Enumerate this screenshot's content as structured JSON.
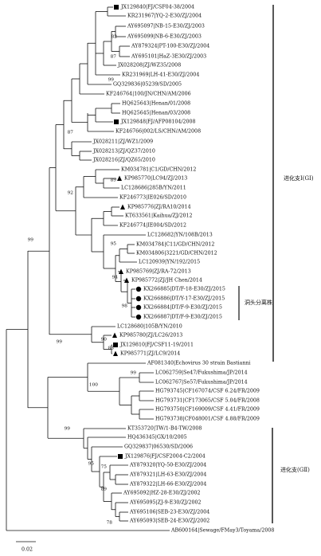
{
  "tree": {
    "leaves": [
      {
        "label": "JX129840|FJ/CSF04-38/2004",
        "marker": "square"
      },
      {
        "label": "KR231967|YQ-2-E30/ZJ/2004"
      },
      {
        "label": "AY695097|NB-15-E30/ZJ/2003"
      },
      {
        "label": "AY695099|NB-6-E30/ZJ/2003"
      },
      {
        "label": "AY879324|PT-100-E30/ZJ/2004"
      },
      {
        "label": "AY695101|HaZ-3E30/ZJ/2003"
      },
      {
        "label": "JX028208|ZJ/WZ35/2008"
      },
      {
        "label": "KR231969|LH-41-E30/ZJ/2004"
      },
      {
        "label": "GQ329836|05239/SD/2005"
      },
      {
        "label": "KF246764|100/JN/CHN/AM/2006"
      },
      {
        "label": "HQ625643|Henan/01/2008"
      },
      {
        "label": "HQ625645|Henan/03/2008"
      },
      {
        "label": "JX129848|FJ/AFP08104/2008",
        "marker": "square"
      },
      {
        "label": "KF246766|002/LS/CHN/AM/2008"
      },
      {
        "label": "JX028211|ZJ/WZ1/2009"
      },
      {
        "label": "JX028213|ZJ/QZ37/2010"
      },
      {
        "label": "JX028216|ZJ/QZ65/2010"
      },
      {
        "label": "KM034781|C1/GD/CHN/2012"
      },
      {
        "label": "KP985770|LC94/ZJ/2013",
        "marker": "triangle"
      },
      {
        "label": "LC128686|285B/YN/2011"
      },
      {
        "label": "KF246773|IE026/SD/2010"
      },
      {
        "label": "KP985776|ZJ/RA10/2014",
        "marker": "triangle"
      },
      {
        "label": "KT633561|Kaihua/ZJ/2012"
      },
      {
        "label": "KF246774|IE004/SD/2012"
      },
      {
        "label": "LC128682|YN/108B/2013"
      },
      {
        "label": "KM034784|C11/GD/CHN/2012"
      },
      {
        "label": "KM034806|3221/GD/CHN/2012"
      },
      {
        "label": "LC120939|YN/192/2015"
      },
      {
        "label": "KP985769|ZJ/RA-72/2013",
        "marker": "triangle"
      },
      {
        "label": "KP985772|ZJ/JH Chen/2014",
        "marker": "triangle"
      },
      {
        "label": "KX266885|DT/F-18-E30/ZJ/2015",
        "marker": "circle"
      },
      {
        "label": "KX266886|DT/Y-17-E30/ZJ/2015",
        "marker": "circle"
      },
      {
        "label": "KX266884|DT/F-9-E30/ZJ/2015",
        "marker": "circle"
      },
      {
        "label": "KX266887|DT/F-9-E30/ZJ/2015",
        "marker": "circle"
      },
      {
        "label": "LC128680|105B/YN/2010"
      },
      {
        "label": "KP985780|ZJ/LC26/2013",
        "marker": "triangle"
      },
      {
        "label": "JX129810|FJ/CSF11-19/2011",
        "marker": "square"
      },
      {
        "label": "KP985771|ZJ/LC9/2014",
        "marker": "triangle"
      },
      {
        "label": "AF081340|Echovirus 30 strain Bastianni"
      },
      {
        "label": "LC062759|Se47/Fukushima/JP/2014"
      },
      {
        "label": "LC062767|Se57/Fukushima/JP/2014"
      },
      {
        "label": "HG793745|CF167074/CSF 6.24/FR/2009"
      },
      {
        "label": "HG793731|CF173065/CSF 5.04/FR/2008"
      },
      {
        "label": "HG793750|CF169009/CSF 4.41/FR/2009"
      },
      {
        "label": "HG793738|CF048001/CSF 4.88/FR/2009"
      },
      {
        "label": "KT353720|TW/1-B4-TW/2008"
      },
      {
        "label": "HQ436345|GX/10/2005"
      },
      {
        "label": "GQ329837|06530/SD/2006"
      },
      {
        "label": "JX129876|FJ/CSF2004-C2/2004",
        "marker": "square"
      },
      {
        "label": "AY879320|YQ-50-E30/ZJ/2004"
      },
      {
        "label": "AY879321|LH-63-E30/ZJ/2004"
      },
      {
        "label": "AY879322|LH-66-E30/ZJ/2004"
      },
      {
        "label": "AY695092|HZ-28-E30/ZJ/2002"
      },
      {
        "label": "AY695095|ZJ-9-E30/ZJ/2002"
      },
      {
        "label": "AY695106|SEB-23-E30/ZJ/2004"
      },
      {
        "label": "AY695093|SEB-24-E30/ZJ/2002"
      },
      {
        "label": "AB600164|Sewage/FMay3/Toyama/2008"
      }
    ],
    "bootstrap": [
      "82",
      "87",
      "99",
      "87",
      "89",
      "92",
      "99",
      "95",
      "94",
      "98",
      "99",
      "90",
      "83",
      "99",
      "100",
      "99",
      "95",
      "75",
      "89",
      "78"
    ],
    "clades": [
      "进化支Ⅰ(GⅠ)",
      "进化支(GⅡ)"
    ],
    "isolate_group": "洞头分离株",
    "scale_label": "0.02"
  }
}
